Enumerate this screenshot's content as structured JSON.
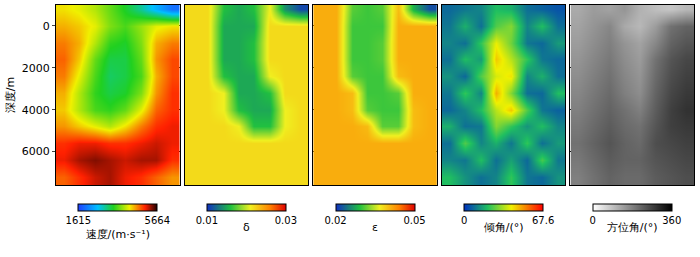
{
  "chart_data": [
    {
      "type": "heatmap",
      "ylabel": "深度/m",
      "tick_labels": "y",
      "grid": true,
      "y": [
        -800,
        0,
        800,
        1600,
        2400,
        3200,
        4000,
        4800,
        5600,
        6400,
        7200
      ],
      "ylim": [
        7600,
        -1000
      ],
      "yticks": [
        0,
        2000,
        4000,
        6000
      ],
      "colorbar_title": "速度/(m·s⁻¹)",
      "colorbar_range": [
        1615,
        5664
      ],
      "colorbar_ticks": [
        1615,
        5664
      ],
      "z": [
        [
          4300,
          4200,
          4000,
          3700,
          3400,
          3000,
          2500,
          2000
        ],
        [
          4500,
          4400,
          4200,
          3800,
          3600,
          3900,
          4200,
          4300
        ],
        [
          4700,
          4500,
          4000,
          3500,
          3400,
          3800,
          4500,
          4700
        ],
        [
          4800,
          4400,
          3700,
          3300,
          3300,
          3700,
          4600,
          4900
        ],
        [
          4700,
          4200,
          3600,
          3200,
          3300,
          3600,
          4500,
          4900
        ],
        [
          4500,
          4000,
          3500,
          3300,
          3400,
          3800,
          4600,
          5000
        ],
        [
          4400,
          4000,
          3600,
          3500,
          3700,
          4200,
          4800,
          5000
        ],
        [
          4600,
          4400,
          4200,
          4000,
          4300,
          4700,
          5000,
          5100
        ],
        [
          5000,
          5100,
          5100,
          5000,
          5000,
          5100,
          5200,
          5100
        ],
        [
          5100,
          5300,
          5400,
          5300,
          5200,
          5300,
          5300,
          5000
        ],
        [
          4800,
          5000,
          5200,
          5300,
          5100,
          5000,
          4800,
          4600
        ]
      ]
    },
    {
      "type": "heatmap",
      "tick_labels": false,
      "grid": true,
      "y": [
        -800,
        0,
        800,
        1600,
        2400,
        3200,
        4000,
        4800,
        5600,
        6400,
        7200
      ],
      "ylim": [
        7600,
        -1000
      ],
      "yticks": [
        0,
        2000,
        4000,
        6000
      ],
      "colorbar_title": "δ",
      "colorbar_range": [
        0.01,
        0.03
      ],
      "colorbar_ticks": [
        0.01,
        0.03
      ],
      "z": [
        [
          0.022,
          0.022,
          0.016,
          0.015,
          0.016,
          0.021,
          0.014,
          0.011
        ],
        [
          0.022,
          0.022,
          0.015,
          0.015,
          0.015,
          0.022,
          0.022,
          0.022
        ],
        [
          0.022,
          0.022,
          0.015,
          0.015,
          0.016,
          0.022,
          0.022,
          0.022
        ],
        [
          0.022,
          0.022,
          0.015,
          0.015,
          0.016,
          0.022,
          0.022,
          0.022
        ],
        [
          0.022,
          0.022,
          0.016,
          0.015,
          0.015,
          0.021,
          0.022,
          0.022
        ],
        [
          0.022,
          0.022,
          0.021,
          0.015,
          0.015,
          0.016,
          0.022,
          0.022
        ],
        [
          0.022,
          0.022,
          0.021,
          0.016,
          0.015,
          0.015,
          0.021,
          0.022
        ],
        [
          0.022,
          0.022,
          0.022,
          0.021,
          0.016,
          0.016,
          0.021,
          0.022
        ],
        [
          0.022,
          0.022,
          0.022,
          0.022,
          0.022,
          0.022,
          0.022,
          0.022
        ],
        [
          0.022,
          0.022,
          0.022,
          0.022,
          0.022,
          0.022,
          0.022,
          0.022
        ],
        [
          0.022,
          0.022,
          0.022,
          0.022,
          0.022,
          0.022,
          0.022,
          0.022
        ]
      ]
    },
    {
      "type": "heatmap",
      "tick_labels": false,
      "grid": true,
      "y": [
        -800,
        0,
        800,
        1600,
        2400,
        3200,
        4000,
        4800,
        5600,
        6400,
        7200
      ],
      "ylim": [
        7600,
        -1000
      ],
      "yticks": [
        0,
        2000,
        4000,
        6000
      ],
      "colorbar_title": "ε",
      "colorbar_range": [
        0.02,
        0.05
      ],
      "colorbar_ticks": [
        0.02,
        0.05
      ],
      "z": [
        [
          0.041,
          0.041,
          0.031,
          0.03,
          0.031,
          0.04,
          0.028,
          0.022
        ],
        [
          0.041,
          0.041,
          0.03,
          0.03,
          0.03,
          0.041,
          0.041,
          0.041
        ],
        [
          0.041,
          0.041,
          0.03,
          0.03,
          0.031,
          0.041,
          0.041,
          0.041
        ],
        [
          0.041,
          0.041,
          0.03,
          0.03,
          0.031,
          0.041,
          0.041,
          0.041
        ],
        [
          0.041,
          0.041,
          0.031,
          0.03,
          0.03,
          0.04,
          0.041,
          0.041
        ],
        [
          0.041,
          0.041,
          0.04,
          0.03,
          0.03,
          0.031,
          0.041,
          0.041
        ],
        [
          0.041,
          0.041,
          0.04,
          0.031,
          0.03,
          0.03,
          0.04,
          0.041
        ],
        [
          0.041,
          0.041,
          0.041,
          0.04,
          0.031,
          0.031,
          0.04,
          0.041
        ],
        [
          0.041,
          0.041,
          0.041,
          0.041,
          0.041,
          0.041,
          0.041,
          0.041
        ],
        [
          0.041,
          0.041,
          0.041,
          0.041,
          0.041,
          0.041,
          0.041,
          0.041
        ],
        [
          0.041,
          0.041,
          0.041,
          0.041,
          0.041,
          0.041,
          0.041,
          0.041
        ]
      ]
    },
    {
      "type": "heatmap",
      "tick_labels": false,
      "grid": true,
      "y": [
        -800,
        0,
        800,
        1600,
        2400,
        3200,
        4000,
        4800,
        5600,
        6400,
        7200
      ],
      "ylim": [
        7600,
        -1000
      ],
      "yticks": [
        0,
        2000,
        4000,
        6000
      ],
      "colorbar_title": "倾角/(°)",
      "colorbar_range": [
        0,
        67.6
      ],
      "colorbar_ticks": [
        0,
        67.6
      ],
      "z": [
        [
          8,
          10,
          12,
          20,
          18,
          9,
          7,
          5
        ],
        [
          10,
          18,
          9,
          25,
          30,
          12,
          20,
          9
        ],
        [
          12,
          9,
          22,
          40,
          28,
          10,
          8,
          15
        ],
        [
          9,
          20,
          15,
          45,
          35,
          22,
          10,
          8
        ],
        [
          14,
          8,
          25,
          38,
          42,
          12,
          18,
          9
        ],
        [
          10,
          22,
          12,
          48,
          30,
          9,
          8,
          20
        ],
        [
          8,
          12,
          20,
          35,
          45,
          25,
          10,
          7
        ],
        [
          18,
          9,
          10,
          30,
          22,
          14,
          20,
          12
        ],
        [
          9,
          25,
          12,
          18,
          10,
          22,
          9,
          15
        ],
        [
          12,
          10,
          20,
          9,
          16,
          8,
          24,
          10
        ],
        [
          20,
          14,
          9,
          12,
          22,
          10,
          8,
          14
        ]
      ]
    },
    {
      "type": "heatmap",
      "tick_labels": false,
      "grid": true,
      "y": [
        -800,
        0,
        800,
        1600,
        2400,
        3200,
        4000,
        4800,
        5600,
        6400,
        7200
      ],
      "ylim": [
        7600,
        -1000
      ],
      "yticks": [
        0,
        2000,
        4000,
        6000
      ],
      "colorbar_title": "方位角/(°)",
      "colorbar_range": [
        0,
        360
      ],
      "colorbar_ticks": [
        0,
        360
      ],
      "z": [
        [
          120,
          140,
          130,
          150,
          110,
          90,
          80,
          100
        ],
        [
          130,
          150,
          170,
          120,
          100,
          140,
          200,
          220
        ],
        [
          140,
          160,
          180,
          150,
          130,
          170,
          220,
          240
        ],
        [
          150,
          170,
          190,
          160,
          140,
          200,
          240,
          260
        ],
        [
          160,
          180,
          200,
          170,
          150,
          210,
          250,
          270
        ],
        [
          170,
          190,
          210,
          180,
          160,
          220,
          260,
          280
        ],
        [
          180,
          200,
          220,
          200,
          180,
          230,
          270,
          290
        ],
        [
          190,
          210,
          230,
          210,
          200,
          240,
          270,
          280
        ],
        [
          200,
          220,
          240,
          220,
          210,
          250,
          260,
          270
        ],
        [
          190,
          210,
          230,
          220,
          220,
          240,
          250,
          260
        ],
        [
          180,
          200,
          220,
          210,
          210,
          230,
          240,
          250
        ]
      ]
    }
  ]
}
